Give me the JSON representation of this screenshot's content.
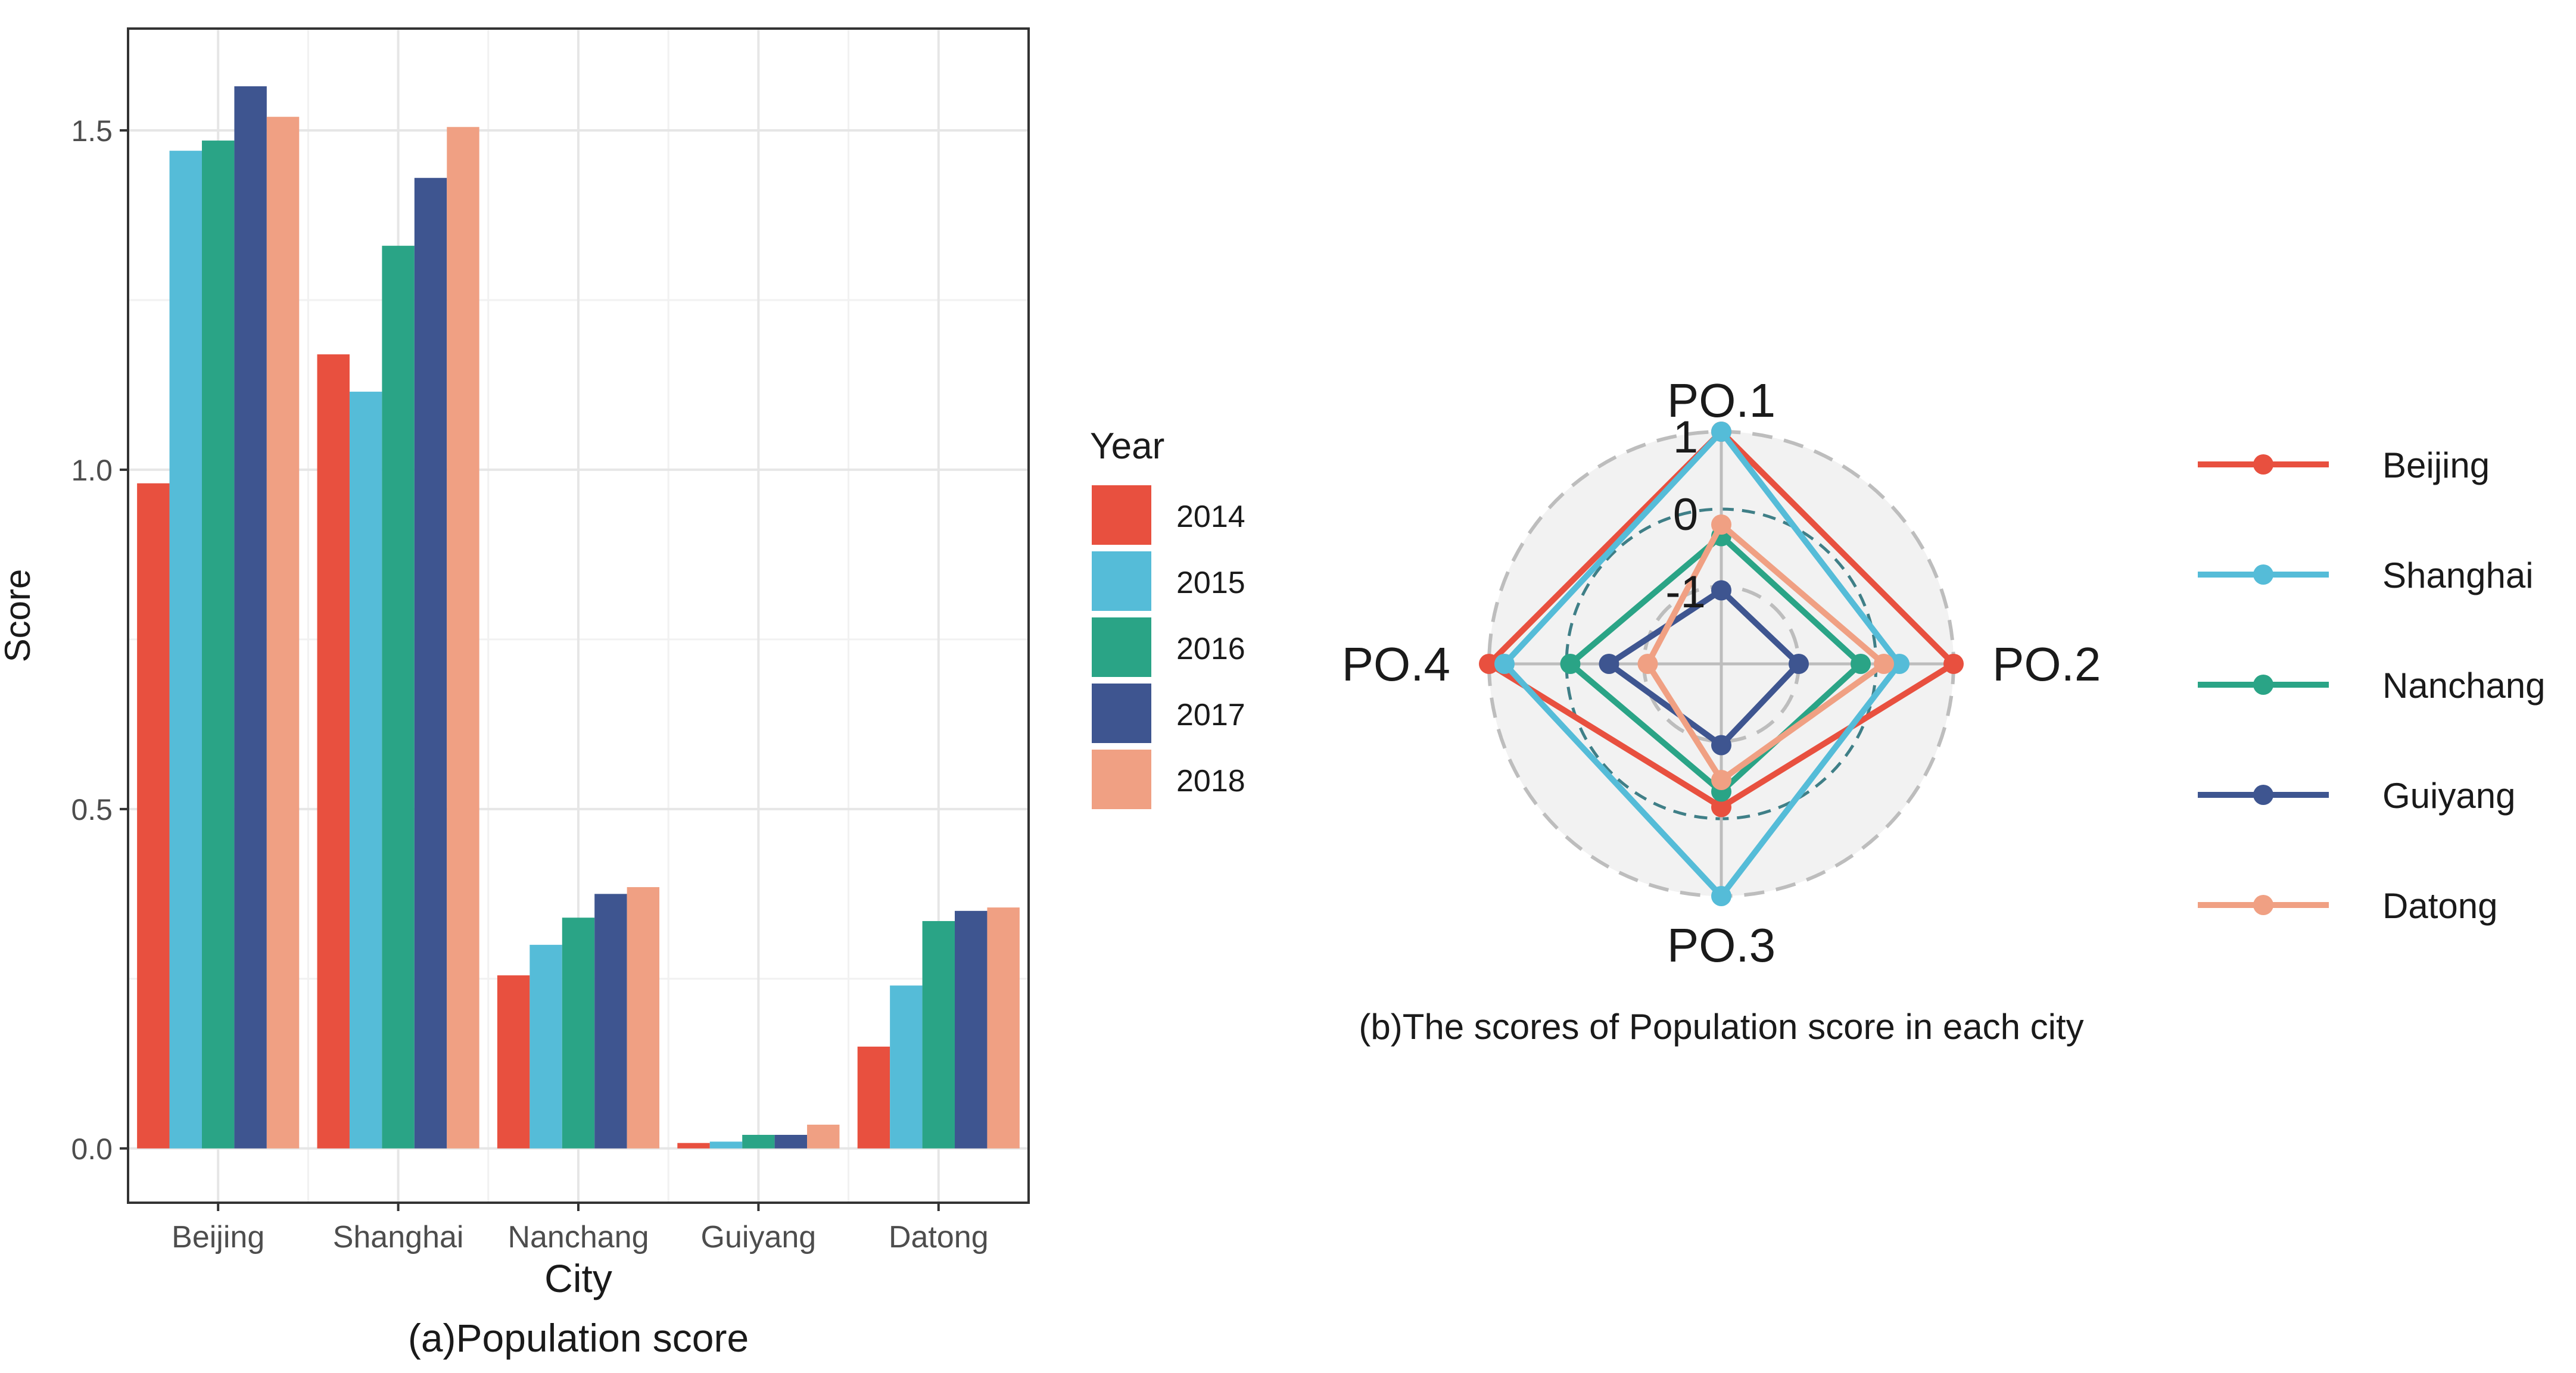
{
  "chart_data": [
    {
      "type": "bar",
      "caption": "(a)Population score",
      "xlabel": "City",
      "ylabel": "Score",
      "categories": [
        "Beijing",
        "Shanghai",
        "Nanchang",
        "Guiyang",
        "Datong"
      ],
      "ylim": [
        -0.08,
        1.65
      ],
      "yticks": [
        0.0,
        0.5,
        1.0,
        1.5
      ],
      "ytick_labels": [
        "0.0",
        "0.5",
        "1.0",
        "1.5"
      ],
      "grid": true,
      "legend_title": "Year",
      "legend_position": "right",
      "series": [
        {
          "name": "2014",
          "color": "#E8503F",
          "values": [
            0.98,
            1.17,
            0.255,
            0.008,
            0.15
          ]
        },
        {
          "name": "2015",
          "color": "#55BCD8",
          "values": [
            1.47,
            1.115,
            0.3,
            0.01,
            0.24
          ]
        },
        {
          "name": "2016",
          "color": "#2AA486",
          "values": [
            1.485,
            1.33,
            0.34,
            0.02,
            0.335
          ]
        },
        {
          "name": "2017",
          "color": "#3E5590",
          "values": [
            1.565,
            1.43,
            0.375,
            0.02,
            0.35
          ]
        },
        {
          "name": "2018",
          "color": "#F0A083",
          "values": [
            1.52,
            1.505,
            0.385,
            0.035,
            0.355
          ]
        }
      ]
    },
    {
      "type": "radar",
      "caption": "(b)The scores of Population score in each city",
      "axes": [
        "PO.1",
        "PO.2",
        "PO.3",
        "PO.4"
      ],
      "rlim": [
        -2,
        1
      ],
      "rticks": [
        1,
        0,
        -1
      ],
      "rtick_labels": [
        "1",
        "0",
        "-1"
      ],
      "legend_position": "right",
      "series": [
        {
          "name": "Beijing",
          "color": "#E8503F",
          "values": [
            1.0,
            1.0,
            -0.15,
            1.0
          ]
        },
        {
          "name": "Shanghai",
          "color": "#55BCD8",
          "values": [
            1.0,
            0.3,
            1.0,
            0.8
          ]
        },
        {
          "name": "Nanchang",
          "color": "#2AA486",
          "values": [
            -0.35,
            -0.2,
            -0.35,
            -0.05
          ]
        },
        {
          "name": "Guiyang",
          "color": "#3E5590",
          "values": [
            -1.05,
            -1.0,
            -0.95,
            -0.55
          ]
        },
        {
          "name": "Datong",
          "color": "#F0A083",
          "values": [
            -0.2,
            0.1,
            -0.5,
            -1.05
          ]
        }
      ]
    }
  ]
}
